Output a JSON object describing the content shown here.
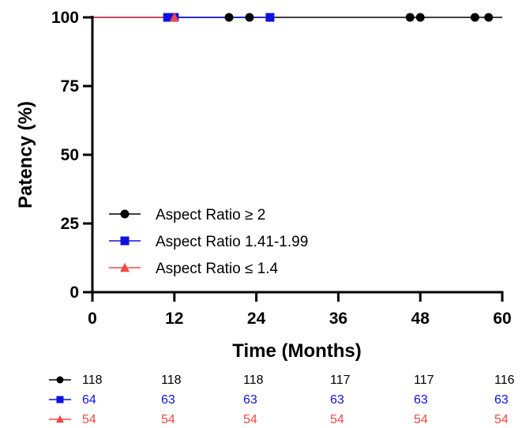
{
  "chart_data": {
    "type": "line",
    "subtype": "kaplan-meier",
    "title": "",
    "xlabel": "Time (Months)",
    "ylabel": "Patency (%)",
    "xlim": [
      0,
      60
    ],
    "ylim": [
      0,
      100
    ],
    "x_ticks": [
      "0",
      "12",
      "24",
      "36",
      "48",
      "60"
    ],
    "y_ticks": [
      "0",
      "25",
      "50",
      "75",
      "100"
    ],
    "grid": false,
    "legend_position": "center-left",
    "series": [
      {
        "name": "Aspect Ratio ≥ 2",
        "color": "#000000",
        "marker": "circle",
        "line": [
          [
            0,
            100
          ],
          [
            60,
            100
          ]
        ],
        "censor_x": [
          20,
          23,
          46.5,
          48,
          56,
          58
        ],
        "censor_y": 100
      },
      {
        "name": "Aspect Ratio 1.41-1.99",
        "color": "#1010e0",
        "marker": "square",
        "line": [
          [
            0,
            100
          ],
          [
            26,
            100
          ]
        ],
        "censor_x": [
          11,
          12,
          26
        ],
        "censor_y": 100
      },
      {
        "name": "Aspect Ratio ≤ 1.4",
        "color": "#f04848",
        "marker": "triangle",
        "line": [
          [
            0,
            100
          ],
          [
            12,
            100
          ]
        ],
        "censor_x": [
          12
        ],
        "censor_y": 100
      }
    ],
    "at_risk": [
      [
        "118",
        "118",
        "118",
        "117",
        "117",
        "116"
      ],
      [
        "64",
        "63",
        "63",
        "63",
        "63",
        "63"
      ],
      [
        "54",
        "54",
        "54",
        "54",
        "54",
        "54"
      ]
    ]
  }
}
